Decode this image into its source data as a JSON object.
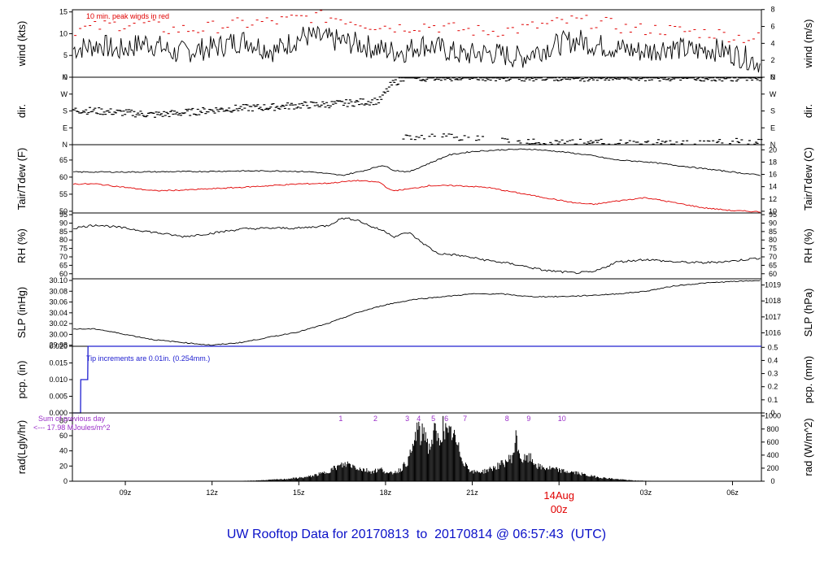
{
  "title": "UW Rooftop Data for 20170813  to  20170814 @ 06:57:43  (UTC)",
  "colors": {
    "title": "#0a10c8",
    "peak": "#e00000",
    "dew": "#e00000",
    "precip": "#2020d0",
    "rad_note": "#9a2fc8",
    "date_marker": "#e00000",
    "line": "#000000"
  },
  "x_axis": {
    "ticks": [
      {
        "label": "09z",
        "hour": 9
      },
      {
        "label": "12z",
        "hour": 12
      },
      {
        "label": "15z",
        "hour": 15
      },
      {
        "label": "18z",
        "hour": 18
      },
      {
        "label": "21z",
        "hour": 21
      },
      {
        "label": "03z",
        "hour": 27
      },
      {
        "label": "06z",
        "hour": 30
      }
    ],
    "date_marker": {
      "date": "14Aug",
      "time": "00z",
      "hour": 24
    },
    "start_hour": 7.17,
    "end_hour": 31.0
  },
  "chart_data": [
    {
      "id": "wind",
      "type": "line",
      "ylabel_left": "wind (kts)",
      "ylabel_right": "wind (m/s)",
      "ylim": [
        0,
        15.5
      ],
      "yticks_left": [
        0,
        5,
        10,
        15
      ],
      "yticks_right": [
        {
          "label": "0",
          "value": 0
        },
        {
          "label": "2",
          "value": 3.89
        },
        {
          "label": "4",
          "value": 7.78
        },
        {
          "label": "6",
          "value": 11.66
        },
        {
          "label": "8",
          "value": 15.55
        }
      ],
      "annotation": "10 min. peak winds in red",
      "series": [
        {
          "name": "wind",
          "style": "line",
          "x": [
            7.2,
            7.7,
            8.2,
            8.7,
            9.2,
            9.7,
            10.2,
            10.7,
            11.2,
            11.7,
            12.2,
            12.7,
            13.2,
            13.7,
            14.2,
            14.7,
            15.2,
            15.7,
            16.2,
            16.7,
            17.2,
            17.7,
            18.2,
            18.7,
            19.2,
            19.7,
            20.2,
            20.7,
            21.2,
            21.7,
            22.2,
            22.7,
            23.2,
            23.7,
            24.2,
            24.7,
            25.2,
            25.7,
            26.2,
            26.7,
            27.2,
            27.7,
            28.2,
            28.7,
            29.2,
            29.7,
            30.2,
            30.7,
            31.0
          ],
          "y": [
            6.5,
            7,
            7.5,
            6,
            7,
            8,
            7,
            5.5,
            6,
            6.5,
            7,
            8,
            8.5,
            7,
            6,
            8,
            9.5,
            9,
            8.5,
            8,
            7.5,
            6.5,
            6,
            6,
            7.5,
            7,
            6,
            5,
            5.5,
            5.5,
            5,
            4.5,
            6,
            7,
            8,
            8.5,
            7.5,
            7,
            6.5,
            6,
            6,
            7,
            6.5,
            6,
            6.5,
            6,
            5,
            4,
            3
          ]
        },
        {
          "name": "peak",
          "style": "dash",
          "x": [
            7.5,
            8.5,
            9.5,
            10.5,
            11.5,
            12.5,
            13.5,
            14.5,
            15.5,
            16.5,
            17.5,
            18.5,
            19.5,
            20.5,
            21.5,
            22.5,
            23.5,
            24.5,
            25.5,
            26.5,
            27.5,
            28.5,
            29.5,
            30.5
          ],
          "y": [
            11,
            12,
            12.5,
            11,
            11,
            12,
            12.5,
            13,
            14,
            13.5,
            12,
            11.5,
            12,
            11,
            10.5,
            11,
            12,
            13,
            12.5,
            11,
            11,
            10.5,
            10,
            9
          ]
        }
      ]
    },
    {
      "id": "dir",
      "type": "scatter",
      "ylabel_left": "dir.",
      "ylabel_right": "dir.",
      "ylim": [
        0,
        360
      ],
      "yticks_left": [
        {
          "label": "N",
          "value": 0
        },
        {
          "label": "E",
          "value": 90
        },
        {
          "label": "S",
          "value": 180
        },
        {
          "label": "W",
          "value": 270
        },
        {
          "label": "N",
          "value": 360
        }
      ],
      "yticks_right": [
        {
          "label": "N",
          "value": 0
        },
        {
          "label": "E",
          "value": 90
        },
        {
          "label": "S",
          "value": 180
        },
        {
          "label": "W",
          "value": 270
        },
        {
          "label": "N",
          "value": 360
        }
      ],
      "series": [
        {
          "name": "direction",
          "x": [
            7.2,
            8.0,
            9.0,
            10.0,
            11.0,
            12.0,
            13.0,
            14.0,
            15.0,
            16.0,
            17.0,
            17.8,
            18.2,
            18.6,
            19.5,
            20.5,
            21.5,
            22.5,
            23.5,
            24.5,
            25.5,
            26.5,
            27.5,
            28.5,
            29.5,
            30.5,
            31.0
          ],
          "y": [
            185,
            180,
            170,
            160,
            170,
            185,
            195,
            200,
            210,
            215,
            225,
            235,
            320,
            355,
            358,
            360,
            360,
            358,
            358,
            357,
            358,
            360,
            358,
            357,
            358,
            358,
            357
          ],
          "alt_y": [
            null,
            null,
            null,
            null,
            null,
            null,
            null,
            null,
            null,
            null,
            null,
            null,
            null,
            15,
            40,
            45,
            35,
            25,
            15,
            12,
            14,
            10,
            12,
            14,
            12,
            18,
            15
          ]
        }
      ]
    },
    {
      "id": "temp",
      "type": "line",
      "ylabel_left": "Tair/Tdew (F)",
      "ylabel_right": "Tair/Tdew (C)",
      "ylim": [
        49.5,
        69.5
      ],
      "yticks_left": [
        50,
        55,
        60,
        65
      ],
      "yticks_right": [
        {
          "label": "10",
          "value": 50
        },
        {
          "label": "12",
          "value": 53.6
        },
        {
          "label": "14",
          "value": 57.2
        },
        {
          "label": "16",
          "value": 60.8
        },
        {
          "label": "18",
          "value": 64.4
        },
        {
          "label": "20",
          "value": 68
        }
      ],
      "series": [
        {
          "name": "Tair",
          "style": "line",
          "x": [
            7.2,
            9,
            11,
            13,
            14.5,
            15.5,
            16.5,
            17.3,
            17.9,
            18.3,
            18.8,
            19.5,
            20.2,
            21,
            22,
            23,
            24,
            25,
            26,
            27,
            28,
            29,
            30,
            31
          ],
          "y": [
            61.5,
            61.5,
            61.6,
            61.8,
            61.8,
            61.5,
            60.5,
            62,
            63.5,
            62,
            61.5,
            64,
            66.5,
            67.5,
            68,
            68.2,
            67.5,
            66.5,
            65,
            64.5,
            63.5,
            62.5,
            61.5,
            60.5
          ]
        },
        {
          "name": "Tdew",
          "style": "line",
          "x": [
            7.2,
            8,
            9,
            10,
            11,
            12,
            13,
            14,
            15,
            16,
            17,
            17.8,
            18.2,
            18.8,
            19.5,
            20.5,
            21.5,
            22.5,
            23.5,
            24.5,
            25.2,
            26,
            27,
            28,
            29,
            30,
            31
          ],
          "y": [
            58,
            58,
            57,
            56,
            56.2,
            56.6,
            57,
            57.5,
            58,
            58.2,
            59,
            58.5,
            56,
            56.5,
            57.5,
            57.5,
            57,
            55.5,
            54,
            52.5,
            52,
            53,
            54,
            52.5,
            51,
            50.2,
            49.8
          ]
        }
      ]
    },
    {
      "id": "rh",
      "type": "line",
      "ylabel_left": "RH (%)",
      "ylabel_right": "RH (%)",
      "ylim": [
        57,
        96
      ],
      "yticks_left": [
        60,
        65,
        70,
        75,
        80,
        85,
        90,
        95
      ],
      "yticks_right": [
        60,
        65,
        70,
        75,
        80,
        85,
        90,
        95
      ],
      "series": [
        {
          "name": "RH",
          "x": [
            7.2,
            8,
            9,
            10,
            11,
            12,
            13,
            14,
            15,
            16,
            16.5,
            17,
            17.5,
            18,
            18.3,
            18.8,
            19.3,
            19.8,
            20.5,
            21.5,
            22.5,
            23.5,
            24.5,
            25.2,
            26,
            27,
            28,
            29,
            30,
            31
          ],
          "y": [
            87,
            89,
            87,
            84.5,
            82,
            84,
            86.5,
            87,
            87,
            88.5,
            93,
            92,
            88,
            85,
            82,
            84.5,
            78,
            72,
            71,
            68,
            65.5,
            62,
            60.5,
            61,
            67,
            68.5,
            67,
            66.5,
            67.5,
            69.5
          ]
        }
      ]
    },
    {
      "id": "slp",
      "type": "line",
      "ylabel_left": "SLP (inHg)",
      "ylabel_right": "SLP (hPa)",
      "ylim": [
        29.978,
        30.103
      ],
      "yticks_left": [
        {
          "label": "29.98",
          "value": 29.98
        },
        {
          "label": "30.00",
          "value": 30.0
        },
        {
          "label": "30.02",
          "value": 30.02
        },
        {
          "label": "30.04",
          "value": 30.04
        },
        {
          "label": "30.06",
          "value": 30.06
        },
        {
          "label": "30.08",
          "value": 30.08
        },
        {
          "label": "30.10",
          "value": 30.1
        }
      ],
      "yticks_right": [
        {
          "label": "1016",
          "value": 30.0029
        },
        {
          "label": "1017",
          "value": 30.0324
        },
        {
          "label": "1018",
          "value": 30.062
        },
        {
          "label": "1019",
          "value": 30.0915
        }
      ],
      "series": [
        {
          "name": "SLP",
          "x": [
            7.2,
            8,
            9,
            10,
            11,
            12,
            13,
            14,
            15,
            16,
            17,
            18,
            19,
            20,
            21,
            22,
            23,
            24,
            25,
            26,
            27,
            28,
            29,
            30,
            31
          ],
          "y": [
            30.01,
            30.01,
            30.0,
            29.99,
            29.985,
            29.98,
            29.985,
            29.995,
            30.005,
            30.02,
            30.04,
            30.055,
            30.065,
            30.07,
            30.075,
            30.075,
            30.07,
            30.07,
            30.072,
            30.075,
            30.08,
            30.09,
            30.095,
            30.098,
            30.1
          ]
        }
      ]
    },
    {
      "id": "pcp",
      "type": "line",
      "ylabel_left": "pcp. (in)",
      "ylabel_right": "pcp. (mm)",
      "ylim": [
        0,
        0.02
      ],
      "yticks_left": [
        {
          "label": "0.000",
          "value": 0
        },
        {
          "label": "0.005",
          "value": 0.005
        },
        {
          "label": "0.010",
          "value": 0.01
        },
        {
          "label": "0.015",
          "value": 0.015
        },
        {
          "label": "0.020",
          "value": 0.02
        }
      ],
      "yticks_right": [
        {
          "label": "0",
          "value": 0
        },
        {
          "label": "0.1",
          "value": 0.003937
        },
        {
          "label": "0.2",
          "value": 0.007874
        },
        {
          "label": "0.3",
          "value": 0.011811
        },
        {
          "label": "0.4",
          "value": 0.015748
        },
        {
          "label": "0.5",
          "value": 0.019685
        }
      ],
      "annotation": "Tip increments are 0.01in. (0.254mm.)",
      "series": [
        {
          "name": "precip",
          "x": [
            7.2,
            7.45,
            7.46,
            7.7,
            7.71,
            31.0
          ],
          "y": [
            0,
            0,
            0.01,
            0.01,
            0.02,
            0.02
          ]
        }
      ]
    },
    {
      "id": "rad",
      "type": "area",
      "ylabel_left": "rad(Lgly/hr)",
      "ylabel_right": "rad (W/m^2)",
      "ylim": [
        0,
        90
      ],
      "yticks_left": [
        0,
        20,
        40,
        60,
        80
      ],
      "yticks_right": [
        {
          "label": "0",
          "value": 0
        },
        {
          "label": "200",
          "value": 17.2
        },
        {
          "label": "400",
          "value": 34.4
        },
        {
          "label": "600",
          "value": 51.6
        },
        {
          "label": "800",
          "value": 68.8
        },
        {
          "label": "1000",
          "value": 86
        }
      ],
      "annotation_line1": "Sum of previous day",
      "annotation_line2": "<--- 17.98 MJoules/m^2",
      "hour_labels": [
        {
          "label": "1",
          "hour": 16.45
        },
        {
          "label": "2",
          "hour": 17.65
        },
        {
          "label": "3",
          "hour": 18.75
        },
        {
          "label": "4",
          "hour": 19.15
        },
        {
          "label": "5",
          "hour": 19.65
        },
        {
          "label": "6",
          "hour": 20.1
        },
        {
          "label": "7",
          "hour": 20.75
        },
        {
          "label": "8",
          "hour": 22.2
        },
        {
          "label": "9",
          "hour": 22.95
        },
        {
          "label": "10",
          "hour": 24.1
        }
      ],
      "series": [
        {
          "name": "radiation",
          "x": [
            12.7,
            13.5,
            14.5,
            15.3,
            15.9,
            16.3,
            16.7,
            17.1,
            17.5,
            17.9,
            18.1,
            18.5,
            18.8,
            19.0,
            19.1,
            19.2,
            19.35,
            19.5,
            19.7,
            19.85,
            20.0,
            20.15,
            20.3,
            20.5,
            20.7,
            21.0,
            21.4,
            21.8,
            22.1,
            22.4,
            22.5,
            22.7,
            23.0,
            23.3,
            23.7,
            24.2,
            24.6,
            25.0,
            25.5,
            26.0,
            26.6,
            27.2,
            27.5
          ],
          "y": [
            0,
            1,
            3,
            6,
            12,
            20,
            25,
            18,
            14,
            17,
            10,
            16,
            30,
            55,
            80,
            60,
            75,
            45,
            70,
            55,
            80,
            62,
            70,
            48,
            28,
            13,
            14,
            20,
            26,
            35,
            62,
            30,
            33,
            20,
            18,
            14,
            12,
            8,
            5,
            3,
            1,
            0.5,
            0
          ]
        }
      ]
    }
  ]
}
